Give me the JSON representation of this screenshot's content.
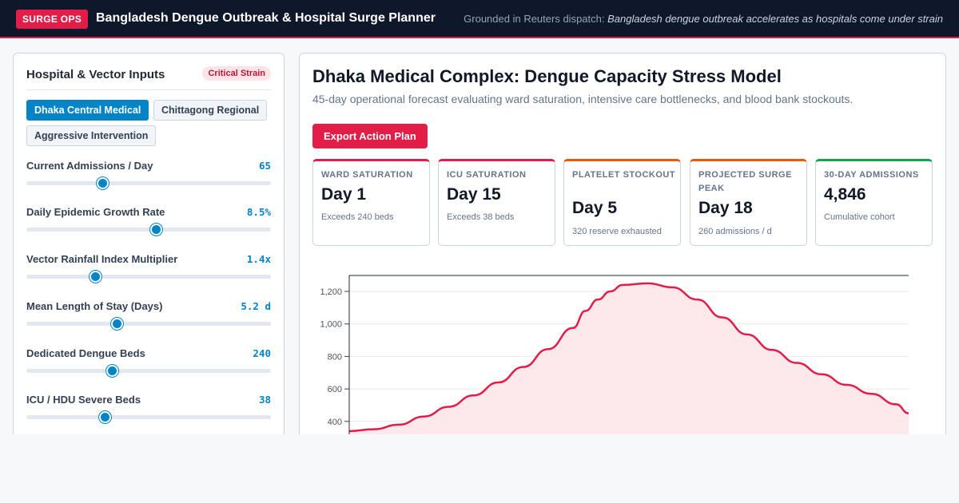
{
  "header": {
    "badge": "SURGE OPS",
    "title": "Bangladesh Dengue Outbreak & Hospital Surge Planner",
    "grounded_prefix": "Grounded in Reuters dispatch:",
    "grounded_headline": "Bangladesh dengue outbreak accelerates as hospitals come under strain"
  },
  "inputs": {
    "title": "Hospital & Vector Inputs",
    "status_badge": "Critical Strain",
    "scenarios": [
      {
        "label": "Dhaka Central Medical",
        "active": true
      },
      {
        "label": "Chittagong Regional",
        "active": false
      },
      {
        "label": "Aggressive Intervention",
        "active": false
      }
    ],
    "sliders": [
      {
        "label": "Current Admissions / Day",
        "value": "65",
        "fill": 0.31
      },
      {
        "label": "Daily Epidemic Growth Rate",
        "value": "8.5%",
        "fill": 0.53
      },
      {
        "label": "Vector Rainfall Index Multiplier",
        "value": "1.4x",
        "fill": 0.28
      },
      {
        "label": "Mean Length of Stay (Days)",
        "value": "5.2 d",
        "fill": 0.37
      },
      {
        "label": "Dedicated Dengue Beds",
        "value": "240",
        "fill": 0.35
      },
      {
        "label": "ICU / HDU Severe Beds",
        "value": "38",
        "fill": 0.32
      }
    ]
  },
  "model": {
    "title": "Dhaka Medical Complex: Dengue Capacity Stress Model",
    "subtitle": "45-day operational forecast evaluating ward saturation, intensive care bottlenecks, and blood bank stockouts.",
    "export_label": "Export Action Plan",
    "kpis": [
      {
        "label": "WARD SATURATION",
        "value": "Day 1",
        "note": "Exceeds 240 beds",
        "accent": "#e11d48"
      },
      {
        "label": "ICU SATURATION",
        "value": "Day 15",
        "note": "Exceeds 38 beds",
        "accent": "#e11d48"
      },
      {
        "label": "PLATELET STOCKOUT",
        "value": "Day 5",
        "note": "320 reserve exhausted",
        "accent": "#ea580c"
      },
      {
        "label": "PROJECTED SURGE PEAK",
        "value": "Day 18",
        "note": "260 admissions / d",
        "accent": "#ea580c"
      },
      {
        "label": "30-DAY ADMISSIONS",
        "value": "4,846",
        "note": "Cumulative cohort",
        "accent": "#16a34a"
      }
    ]
  },
  "chart_data": {
    "type": "area",
    "ylim": [
      300,
      1300
    ],
    "yticks": [
      400,
      600,
      800,
      1000,
      1200
    ],
    "ytick_labels": [
      "400",
      "600",
      "800",
      "1,000",
      "1,200"
    ],
    "grid": true,
    "color": "#e11d48",
    "fill_color": "#fde8ec",
    "series": [
      {
        "x": [
          0,
          2,
          4,
          6,
          8,
          10,
          12,
          14,
          16,
          18,
          19,
          20,
          21,
          22,
          24,
          26,
          28,
          30,
          32,
          34,
          36,
          38,
          40,
          42,
          44,
          45
        ],
        "values": [
          340,
          352,
          380,
          430,
          490,
          560,
          640,
          735,
          845,
          975,
          1080,
          1150,
          1200,
          1240,
          1250,
          1225,
          1150,
          1040,
          935,
          840,
          760,
          690,
          625,
          570,
          505,
          450
        ]
      }
    ]
  }
}
